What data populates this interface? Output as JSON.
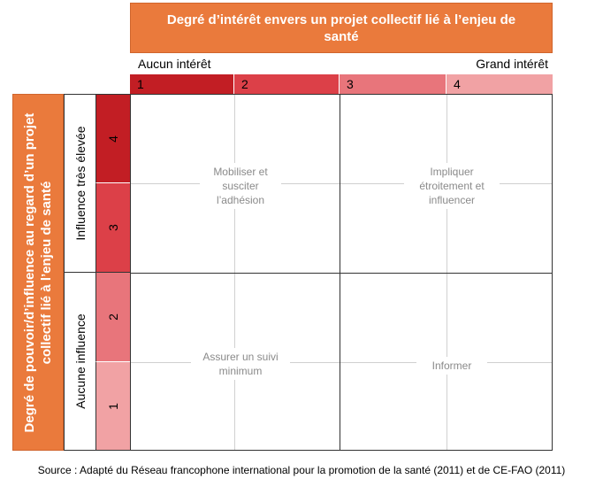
{
  "header": {
    "x_title": "Degré d’intérêt envers un projet collectif lié à l’enjeu de santé",
    "y_title": "Degré de pouvoir/d’influence au regard d’un projet collectif lié à l’enjeu de santé"
  },
  "x_axis": {
    "min_label": "Aucun intérêt",
    "max_label": "Grand intérêt",
    "levels": [
      "1",
      "2",
      "3",
      "4"
    ],
    "colors": [
      "#c21e24",
      "#dc4048",
      "#e8757b",
      "#f1a2a4"
    ]
  },
  "y_axis": {
    "upper_label": "Influence très élevée",
    "lower_label": "Aucune influence",
    "levels_top_to_bottom": [
      "4",
      "3",
      "2",
      "1"
    ],
    "colors_top_to_bottom": [
      "#c21e24",
      "#dc4048",
      "#e8757b",
      "#f1a2a4"
    ]
  },
  "quadrants": {
    "top_left": "Mobiliser et susciter l’adhésion",
    "top_right": "Impliquer étroitement et influencer",
    "bottom_left": "Assurer un suivi minimum",
    "bottom_right": "Informer"
  },
  "source": "Source : Adapté du Réseau francophone international pour la promotion de la santé (2011) et de CE-FAO (2011)",
  "colors": {
    "header": "#ea7a3c"
  }
}
